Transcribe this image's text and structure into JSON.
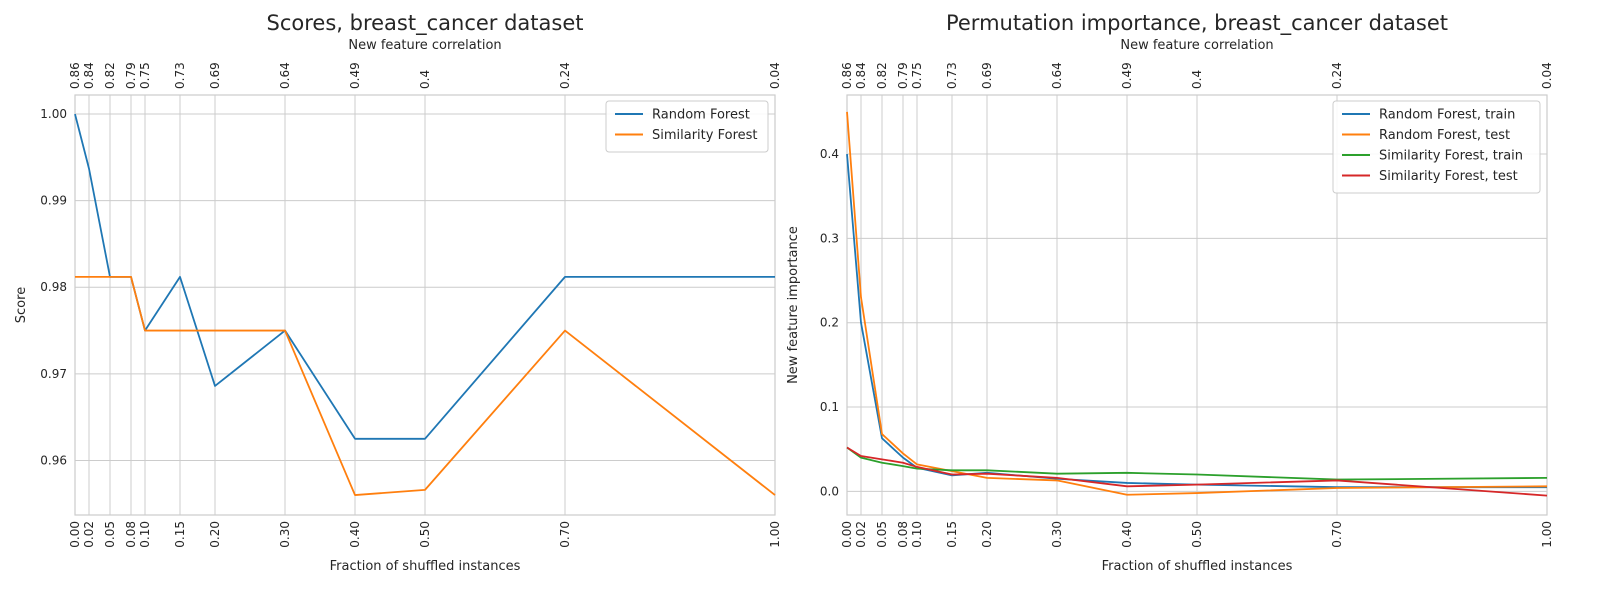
{
  "chart_data": [
    {
      "type": "line",
      "title": "Scores, breast_cancer dataset",
      "xlabel": "Fraction of shuffled instances",
      "ylabel": "Score",
      "top_xlabel": "New feature correlation",
      "x": [
        0.0,
        0.02,
        0.05,
        0.08,
        0.1,
        0.15,
        0.2,
        0.3,
        0.4,
        0.5,
        0.7,
        1.0
      ],
      "x_tick_labels": [
        "0.00",
        "0.02",
        "0.05",
        "0.08",
        "0.10",
        "0.15",
        "0.20",
        "0.30",
        "0.40",
        "0.50",
        "0.70",
        "1.00"
      ],
      "top_tick_labels": [
        "0.86",
        "0.84",
        "0.82",
        "0.79",
        "0.75",
        "0.73",
        "0.69",
        "0.64",
        "0.49",
        "0.4",
        "0.24",
        "0.04"
      ],
      "xlim": [
        0.0,
        1.0
      ],
      "ylim": [
        0.9537,
        1.0022
      ],
      "y_ticks": [
        0.96,
        0.97,
        0.98,
        0.99,
        1.0
      ],
      "y_tick_labels": [
        "0.96",
        "0.97",
        "0.98",
        "0.99",
        "1.00"
      ],
      "legend_position": "top-right",
      "grid": true,
      "series": [
        {
          "name": "Random Forest",
          "color": "#1f77b4",
          "values": [
            1.0,
            0.9937,
            0.9812,
            0.9812,
            0.975,
            0.9812,
            0.9686,
            0.975,
            0.9625,
            0.9625,
            0.9812,
            0.9812
          ]
        },
        {
          "name": "Similarity Forest",
          "color": "#ff7f0e",
          "values": [
            0.9812,
            0.9812,
            0.9812,
            0.9812,
            0.975,
            0.975,
            0.975,
            0.975,
            0.956,
            0.9566,
            0.975,
            0.956
          ]
        }
      ]
    },
    {
      "type": "line",
      "title": "Permutation importance, breast_cancer dataset",
      "xlabel": "Fraction of shuffled instances",
      "ylabel": "New feature importance",
      "top_xlabel": "New feature correlation",
      "x": [
        0.0,
        0.02,
        0.05,
        0.08,
        0.1,
        0.15,
        0.2,
        0.3,
        0.4,
        0.5,
        0.7,
        1.0
      ],
      "x_tick_labels": [
        "0.00",
        "0.02",
        "0.05",
        "0.08",
        "0.10",
        "0.15",
        "0.20",
        "0.30",
        "0.40",
        "0.50",
        "0.70",
        "1.00"
      ],
      "top_tick_labels": [
        "0.86",
        "0.84",
        "0.82",
        "0.79",
        "0.75",
        "0.73",
        "0.69",
        "0.64",
        "0.49",
        "0.4",
        "0.24",
        "0.04"
      ],
      "xlim": [
        0.0,
        1.0
      ],
      "ylim": [
        -0.028,
        0.47
      ],
      "y_ticks": [
        0.0,
        0.1,
        0.2,
        0.3,
        0.4
      ],
      "y_tick_labels": [
        "0.0",
        "0.1",
        "0.2",
        "0.3",
        "0.4"
      ],
      "legend_position": "top-right",
      "grid": true,
      "series": [
        {
          "name": "Random Forest, train",
          "color": "#1f77b4",
          "values": [
            0.4,
            0.2,
            0.063,
            0.04,
            0.028,
            0.019,
            0.022,
            0.015,
            0.01,
            0.008,
            0.005,
            0.005
          ]
        },
        {
          "name": "Random Forest, test",
          "color": "#ff7f0e",
          "values": [
            0.45,
            0.23,
            0.068,
            0.045,
            0.032,
            0.024,
            0.016,
            0.013,
            -0.004,
            -0.002,
            0.004,
            0.006
          ]
        },
        {
          "name": "Similarity Forest, train",
          "color": "#2ca02c",
          "values": [
            0.052,
            0.04,
            0.034,
            0.03,
            0.027,
            0.025,
            0.025,
            0.021,
            0.022,
            0.02,
            0.014,
            0.016
          ]
        },
        {
          "name": "Similarity Forest, test",
          "color": "#d62728",
          "values": [
            0.052,
            0.042,
            0.038,
            0.034,
            0.029,
            0.02,
            0.021,
            0.016,
            0.006,
            0.008,
            0.013,
            -0.005
          ]
        }
      ]
    }
  ]
}
